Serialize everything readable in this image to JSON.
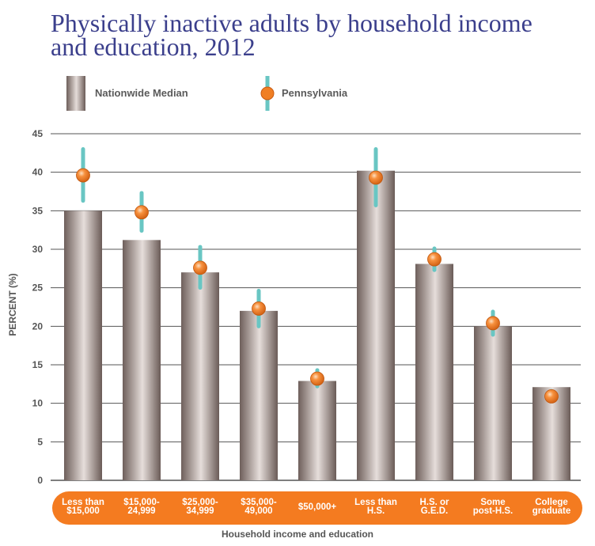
{
  "title_line1": "Physically inactive adults by household income",
  "title_line2": "and education, 2012",
  "legend": {
    "median_label": "Nationwide Median",
    "state_label": "Pennsylvania"
  },
  "colors": {
    "title": "#3b3f8c",
    "band": "#f47b20",
    "marker": "#f07f24",
    "errorbar": "#69c6c3",
    "grid": "#555555"
  },
  "chart_data": {
    "type": "bar",
    "title": "Physically inactive adults by household income and education, 2012",
    "xlabel": "Household income and education",
    "ylabel": "PERCENT (%)",
    "ylim": [
      0,
      45
    ],
    "yticks": [
      0,
      5,
      10,
      15,
      20,
      25,
      30,
      35,
      40,
      45
    ],
    "grid": true,
    "legend_position": "top",
    "categories": [
      [
        "Less than",
        "$15,000"
      ],
      [
        "$15,000-",
        "24,999"
      ],
      [
        "$25,000-",
        "34,999"
      ],
      [
        "$35,000-",
        "49,000"
      ],
      [
        "$50,000+"
      ],
      [
        "Less than",
        "H.S."
      ],
      [
        "H.S. or",
        "G.E.D."
      ],
      [
        "Some",
        "post-H.S."
      ],
      [
        "College",
        "graduate"
      ]
    ],
    "series": [
      {
        "name": "Nationwide Median",
        "kind": "bar",
        "values": [
          35.0,
          31.2,
          27.0,
          22.0,
          12.9,
          40.2,
          28.1,
          20.0,
          12.1
        ]
      },
      {
        "name": "Pennsylvania",
        "kind": "point_with_error",
        "values": [
          39.6,
          34.8,
          27.6,
          22.3,
          13.2,
          39.3,
          28.7,
          20.4,
          10.9
        ],
        "lower": [
          36.3,
          32.4,
          25.0,
          20.0,
          12.2,
          35.7,
          27.3,
          18.9,
          10.3
        ],
        "upper": [
          43.0,
          37.3,
          30.3,
          24.6,
          14.3,
          43.0,
          30.1,
          21.9,
          11.6
        ]
      }
    ]
  }
}
